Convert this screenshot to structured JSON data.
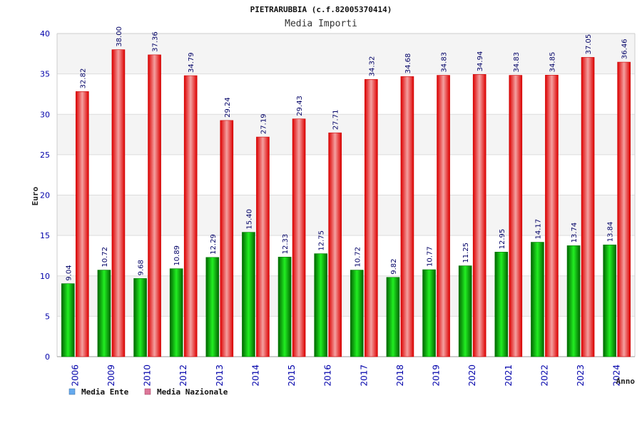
{
  "chart_data": {
    "type": "bar",
    "title": "PIETRARUBBIA (c.f.82005370414)",
    "subtitle": "Media Importi",
    "xlabel": "Anno",
    "ylabel": "Euro",
    "ylim": [
      0,
      40
    ],
    "yticks": [
      0,
      5,
      10,
      15,
      20,
      25,
      30,
      35,
      40
    ],
    "categories": [
      "2006",
      "2009",
      "2010",
      "2012",
      "2013",
      "2014",
      "2015",
      "2016",
      "2017",
      "2018",
      "2019",
      "2020",
      "2021",
      "2022",
      "2023",
      "2024"
    ],
    "series": [
      {
        "name": "Media Ente",
        "values": [
          9.04,
          10.72,
          9.68,
          10.89,
          12.29,
          15.4,
          12.33,
          12.75,
          10.72,
          9.82,
          10.77,
          11.25,
          12.95,
          14.17,
          13.74,
          13.84
        ],
        "labels": [
          "9.04",
          "10.72",
          "9.68",
          "10.89",
          "12.29",
          "15.40",
          "12.33",
          "12.75",
          "10.72",
          "9.82",
          "10.77",
          "11.25",
          "12.95",
          "14.17",
          "13.74",
          "13.84"
        ],
        "color": "#00cc00",
        "legend_color": "#66aaee"
      },
      {
        "name": "Media Nazionale",
        "values": [
          32.82,
          38.0,
          37.36,
          34.79,
          29.24,
          27.19,
          29.43,
          27.71,
          34.32,
          34.68,
          34.83,
          34.94,
          34.83,
          34.85,
          37.05,
          36.46
        ],
        "labels": [
          "32.82",
          "38.00",
          "37.36",
          "34.79",
          "29.24",
          "27.19",
          "29.43",
          "27.71",
          "34.32",
          "34.68",
          "34.83",
          "34.94",
          "34.83",
          "34.85",
          "37.05",
          "36.46"
        ],
        "color": "#ee1111",
        "legend_color": "#dd7799"
      }
    ],
    "grid": true,
    "legend": "bottom-left"
  }
}
